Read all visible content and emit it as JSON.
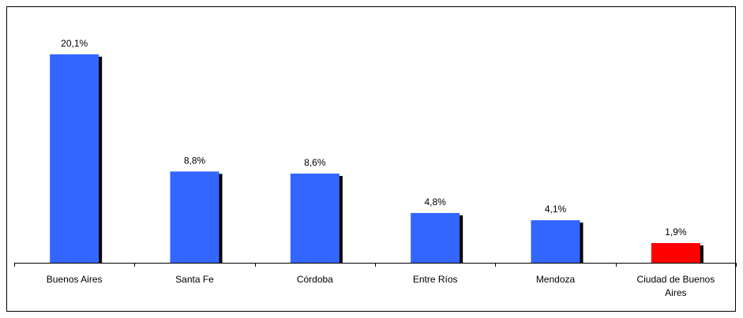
{
  "chart_data": {
    "type": "bar",
    "categories": [
      "Buenos Aires",
      "Santa Fe",
      "Córdoba",
      "Entre Ríos",
      "Mendoza",
      "Ciudad de Buenos Aires"
    ],
    "values": [
      20.1,
      8.8,
      8.6,
      4.8,
      4.1,
      1.9
    ],
    "data_labels": [
      "20,1%",
      "8,8%",
      "8,6%",
      "4,8%",
      "4,1%",
      "1,9%"
    ],
    "ylim": [
      0,
      21
    ],
    "grid": false,
    "legend": "none",
    "colors": {
      "default_bar": "#3366ff",
      "highlight_bar": "#ff0000",
      "shadow": "#000000",
      "highlight_index": 5
    }
  }
}
